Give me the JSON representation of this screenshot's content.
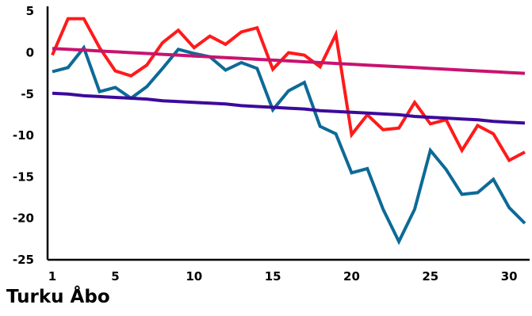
{
  "caption": "Turku Åbo",
  "chart_data": {
    "type": "line",
    "title": "",
    "xlabel": "",
    "ylabel": "",
    "xlim": [
      0.7,
      31.3
    ],
    "ylim": [
      -25,
      5.4
    ],
    "x_ticks": [
      1,
      5,
      10,
      15,
      20,
      25,
      30
    ],
    "y_ticks": [
      5,
      0,
      -5,
      -10,
      -15,
      -20,
      -25
    ],
    "grid": false,
    "legend": "none",
    "x": [
      1,
      2,
      3,
      4,
      5,
      6,
      7,
      8,
      9,
      10,
      11,
      12,
      13,
      14,
      15,
      16,
      17,
      18,
      19,
      20,
      21,
      22,
      23,
      24,
      25,
      26,
      27,
      28,
      29,
      30,
      31
    ],
    "series": [
      {
        "color": "#ff1a1a",
        "values": [
          -0.3,
          4.1,
          4.1,
          0.6,
          -2.2,
          -2.8,
          -1.5,
          1.2,
          2.7,
          0.6,
          2.0,
          1.0,
          2.5,
          3.0,
          -2.0,
          0.0,
          -0.3,
          -1.7,
          2.2,
          -9.9,
          -7.5,
          -9.3,
          -9.1,
          -6.0,
          -8.6,
          -8.1,
          -11.8,
          -8.8,
          -9.8,
          -13.0,
          -12.0
        ]
      },
      {
        "color": "#0d6a96",
        "values": [
          -2.3,
          -1.8,
          0.6,
          -4.7,
          -4.2,
          -5.5,
          -4.1,
          -1.9,
          0.4,
          -0.1,
          -0.5,
          -2.1,
          -1.2,
          -1.9,
          -6.9,
          -4.6,
          -3.6,
          -8.9,
          -9.8,
          -14.5,
          -14.0,
          -18.9,
          -22.8,
          -18.9,
          -11.8,
          -14.1,
          -17.1,
          -16.9,
          -15.3,
          -18.7,
          -20.6
        ]
      },
      {
        "color": "#c8136f",
        "values": [
          0.5,
          0.4,
          0.3,
          0.2,
          0.1,
          0.0,
          -0.1,
          -0.2,
          -0.3,
          -0.4,
          -0.5,
          -0.6,
          -0.7,
          -0.8,
          -0.9,
          -1.0,
          -1.1,
          -1.2,
          -1.3,
          -1.4,
          -1.5,
          -1.6,
          -1.7,
          -1.8,
          -1.9,
          -2.0,
          -2.1,
          -2.2,
          -2.3,
          -2.4,
          -2.5
        ]
      },
      {
        "color": "#3d0a9a",
        "values": [
          -4.9,
          -5.0,
          -5.2,
          -5.3,
          -5.4,
          -5.5,
          -5.6,
          -5.8,
          -5.9,
          -6.0,
          -6.1,
          -6.2,
          -6.4,
          -6.5,
          -6.6,
          -6.7,
          -6.8,
          -7.0,
          -7.1,
          -7.2,
          -7.3,
          -7.4,
          -7.5,
          -7.7,
          -7.8,
          -7.9,
          -8.0,
          -8.1,
          -8.3,
          -8.4,
          -8.5
        ]
      }
    ]
  }
}
